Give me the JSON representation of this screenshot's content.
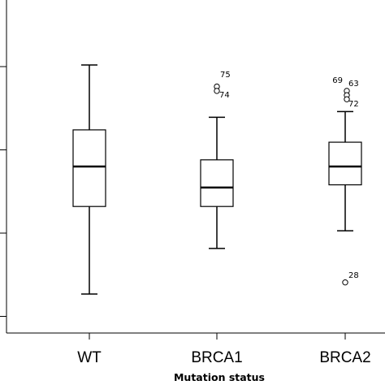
{
  "chart_data": {
    "type": "box",
    "xlabel": "Mutation status",
    "ylabel": "",
    "categories": [
      "WT",
      "BRCA1",
      "BRCA2"
    ],
    "ylim": [
      0,
      1
    ],
    "y_ticks": [
      0.05,
      0.3,
      0.55,
      0.8
    ],
    "y_tick_labels_visible": false,
    "boxes": [
      {
        "name": "WT",
        "min": 0.117,
        "q1": 0.38,
        "median": 0.5,
        "q3": 0.61,
        "max": 0.805,
        "outliers": []
      },
      {
        "name": "BRCA1",
        "min": 0.254,
        "q1": 0.38,
        "median": 0.437,
        "q3": 0.52,
        "max": 0.648,
        "outliers": [
          {
            "value": 0.74,
            "label": "75"
          },
          {
            "value": 0.727,
            "label": "74"
          }
        ]
      },
      {
        "name": "BRCA2",
        "min": 0.307,
        "q1": 0.445,
        "median": 0.5,
        "q3": 0.573,
        "max": 0.665,
        "outliers": [
          {
            "value": 0.727,
            "label": "69"
          },
          {
            "value": 0.714,
            "label": "63"
          },
          {
            "value": 0.702,
            "label": "72"
          },
          {
            "value": 0.152,
            "label": "28"
          }
        ]
      }
    ],
    "grid": false,
    "legend": "none"
  }
}
